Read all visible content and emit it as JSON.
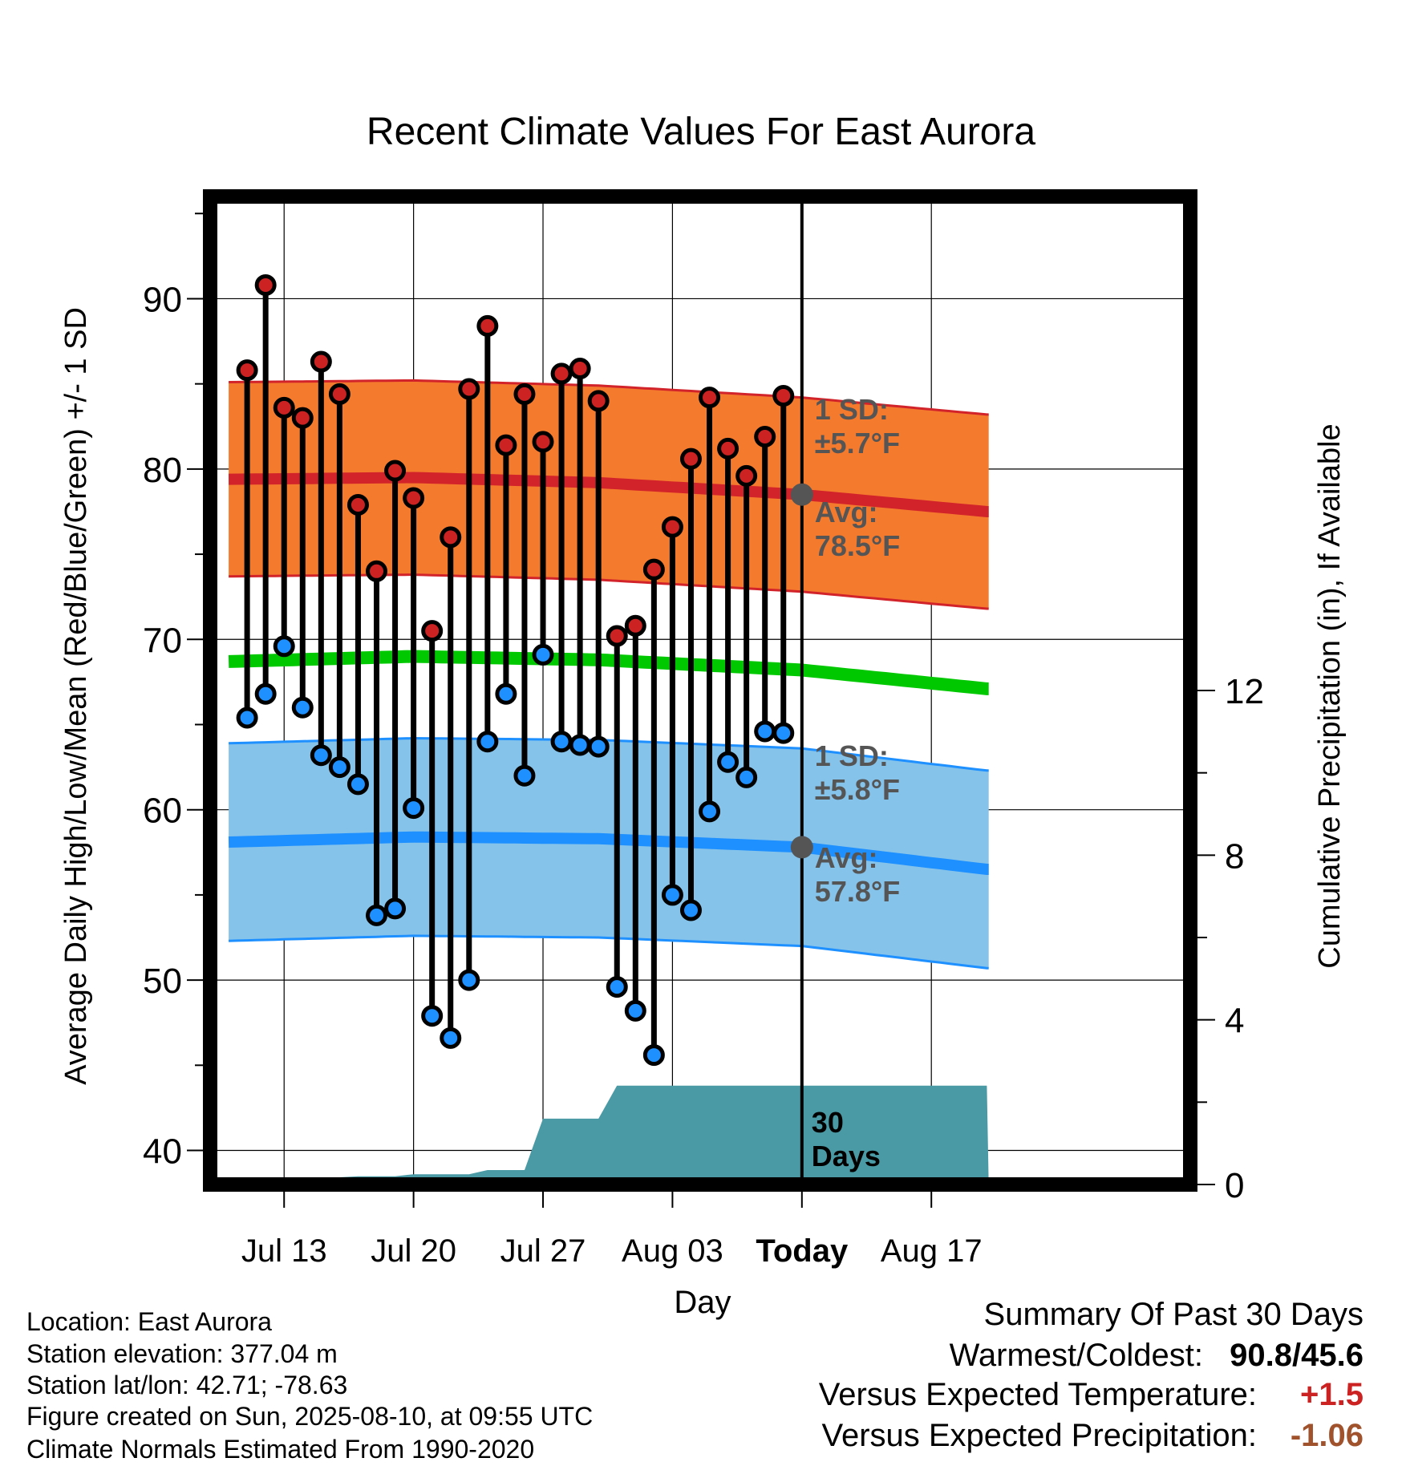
{
  "chart_data": {
    "type": "line",
    "title": "Recent Climate Values For East Aurora",
    "xlabel": "Day",
    "ylabel": "Average Daily High/Low/Mean (Red/Blue/Green) +/- 1 SD",
    "y2label": "Cumulative Precipitation (in), If Available",
    "x_day_range": [
      -1,
      52
    ],
    "ylim": [
      38,
      96
    ],
    "y2lim": [
      0,
      24
    ],
    "yticks": [
      40,
      50,
      60,
      70,
      80,
      90
    ],
    "y2ticks": [
      0,
      4,
      8,
      12
    ],
    "xticks": [
      {
        "day": 3,
        "label": "Jul 13"
      },
      {
        "day": 10,
        "label": "Jul 20"
      },
      {
        "day": 17,
        "label": "Jul 27"
      },
      {
        "day": 24,
        "label": "Aug 03"
      },
      {
        "day": 31,
        "label": "Today"
      },
      {
        "day": 38,
        "label": "Aug 17"
      }
    ],
    "days": [
      1,
      2,
      3,
      4,
      5,
      6,
      7,
      8,
      9,
      10,
      11,
      12,
      13,
      14,
      15,
      16,
      17,
      18,
      19,
      20,
      21,
      22,
      23,
      24,
      25,
      26,
      27,
      28,
      29,
      30
    ],
    "highs": [
      85.8,
      90.8,
      83.6,
      83.0,
      86.3,
      84.4,
      77.9,
      74.0,
      79.9,
      78.3,
      70.5,
      76.0,
      84.7,
      88.4,
      81.4,
      84.4,
      81.6,
      85.6,
      85.9,
      84.0,
      70.2,
      70.8,
      74.1,
      76.6,
      80.6,
      84.2,
      81.2,
      79.6,
      81.9,
      84.3
    ],
    "lows": [
      65.4,
      66.8,
      69.6,
      66.0,
      63.2,
      62.5,
      61.5,
      53.8,
      54.2,
      60.1,
      47.9,
      46.6,
      50.0,
      64.0,
      66.8,
      62.0,
      69.1,
      64.0,
      63.8,
      63.7,
      49.6,
      48.2,
      45.6,
      55.0,
      54.1,
      59.9,
      62.8,
      61.9,
      64.6,
      64.5
    ],
    "normal_high": {
      "days": [
        0,
        10,
        20,
        31,
        41
      ],
      "values": [
        79.4,
        79.5,
        79.2,
        78.5,
        77.5
      ]
    },
    "normal_low": {
      "days": [
        0,
        10,
        20,
        31,
        41
      ],
      "values": [
        58.1,
        58.4,
        58.3,
        57.8,
        56.5
      ]
    },
    "normal_mean": {
      "days": [
        0,
        10,
        20,
        31,
        41
      ],
      "values": [
        68.7,
        69.0,
        68.8,
        68.2,
        67.1
      ]
    },
    "sd_high": 5.7,
    "sd_low": 5.8,
    "precip_cumulative": {
      "days": [
        1,
        1.5,
        5,
        7,
        9,
        10,
        13,
        14,
        16,
        17,
        20,
        21,
        41
      ],
      "values": [
        0,
        0.15,
        0.15,
        0.2,
        0.2,
        0.25,
        0.25,
        0.35,
        0.35,
        1.6,
        1.6,
        2.4,
        2.4
      ]
    },
    "annotations": {
      "sd_high": [
        "1 SD:",
        "±5.7°F"
      ],
      "avg_high": [
        "Avg:",
        "78.5°F"
      ],
      "sd_low": [
        "1 SD:",
        "±5.8°F"
      ],
      "avg_low": [
        "Avg:",
        "57.8°F"
      ],
      "window": [
        "30",
        "Days"
      ]
    },
    "colors": {
      "high_band": "#f47a2e",
      "high_line": "#d2232a",
      "low_band": "#86c3ea",
      "low_line": "#1e90ff",
      "mean_line": "#00c800",
      "precip": "#4a9aa5",
      "high_dot": "#cc2222",
      "low_dot": "#1e90ff",
      "annotation": "#555555",
      "today_dot": "#555555"
    }
  },
  "info": {
    "location": "Location: East Aurora",
    "elevation": "Station elevation: 377.04 m",
    "latlon": "Station lat/lon: 42.71; -78.63",
    "created": "Figure created on Sun, 2025-08-10, at 09:55 UTC",
    "normals": "Climate Normals Estimated From 1990-2020"
  },
  "summary": {
    "title": "Summary Of Past 30 Days",
    "warm_label": "Warmest/Coldest:",
    "warm_value": "90.8/45.6",
    "temp_label": "Versus Expected Temperature:",
    "temp_value": "+1.5",
    "temp_color": "#cc2222",
    "precip_label": "Versus Expected Precipitation:",
    "precip_value": "-1.06",
    "precip_color": "#a0522d"
  }
}
